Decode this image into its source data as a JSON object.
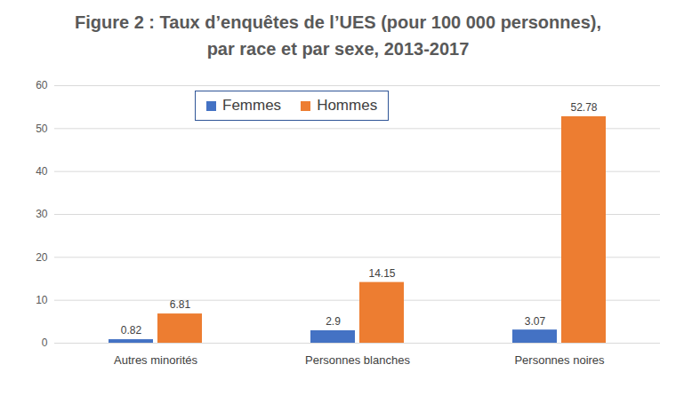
{
  "chart_data": {
    "type": "bar",
    "title": [
      "Figure 2 : Taux d’enquêtes de l’UES (pour 100 000 personnes),",
      "par race et par sexe, 2013-2017"
    ],
    "categories": [
      "Autres minorités",
      "Personnes blanches",
      "Personnes noires"
    ],
    "series": [
      {
        "name": "Femmes",
        "color": "#4472c4",
        "values": [
          0.82,
          2.9,
          3.07
        ]
      },
      {
        "name": "Hommes",
        "color": "#ed7d31",
        "values": [
          6.81,
          14.15,
          52.78
        ]
      }
    ],
    "ylim": [
      0,
      60
    ],
    "yticks": [
      0,
      10,
      20,
      30,
      40,
      50,
      60
    ],
    "grid": true,
    "legend": "top",
    "data_labels": true
  }
}
